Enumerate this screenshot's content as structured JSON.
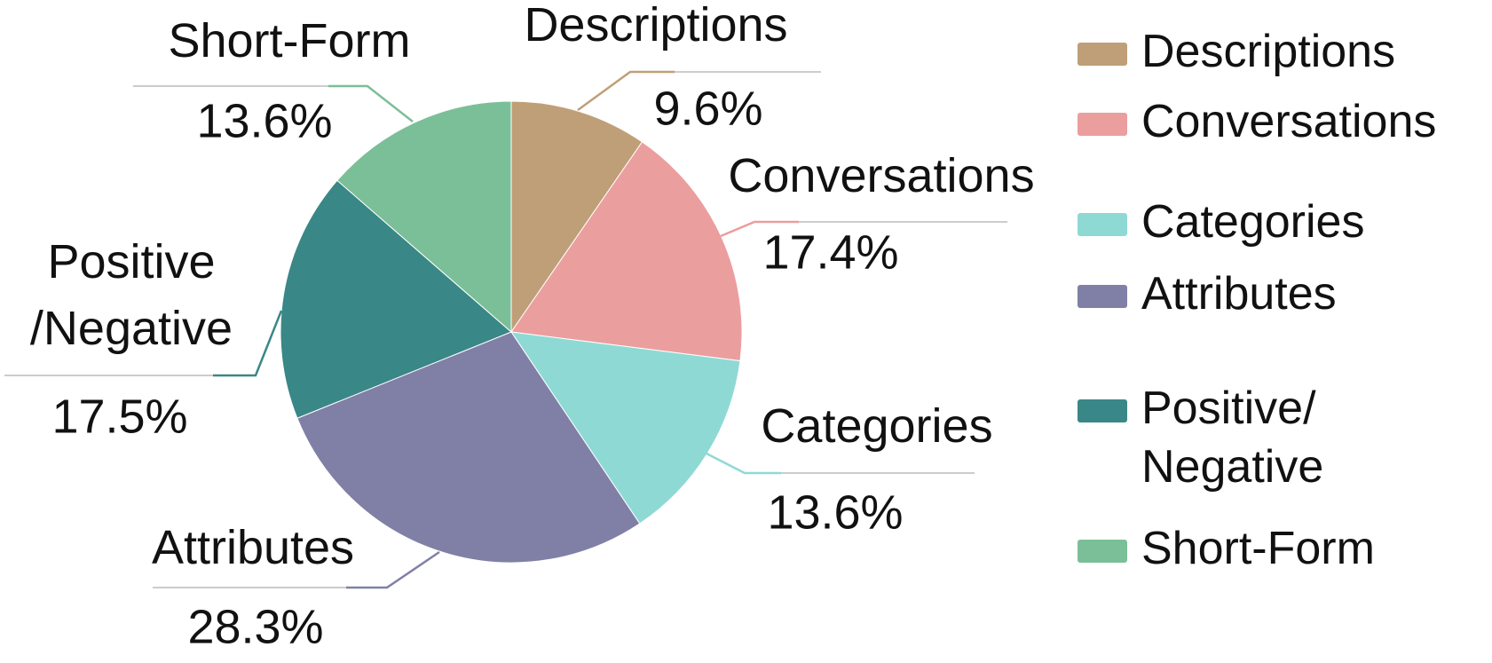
{
  "chart_data": {
    "type": "pie",
    "categories": [
      "Descriptions",
      "Conversations",
      "Categories",
      "Attributes",
      "Positive\n/Negative",
      "Short-Form"
    ],
    "legend": [
      "Descriptions",
      "Conversations",
      "Categories",
      "Attributes",
      "Positive/\nNegative",
      "Short-Form"
    ],
    "values": [
      9.6,
      17.4,
      13.6,
      28.3,
      17.5,
      13.6
    ],
    "value_labels": [
      "9.6%",
      "17.4%",
      "13.6%",
      "28.3%",
      "17.5%",
      "13.6%"
    ],
    "colors": [
      "#bf9f77",
      "#eb9e9e",
      "#8fd9d5",
      "#8080a6",
      "#3a8787",
      "#7bbf98"
    ]
  }
}
